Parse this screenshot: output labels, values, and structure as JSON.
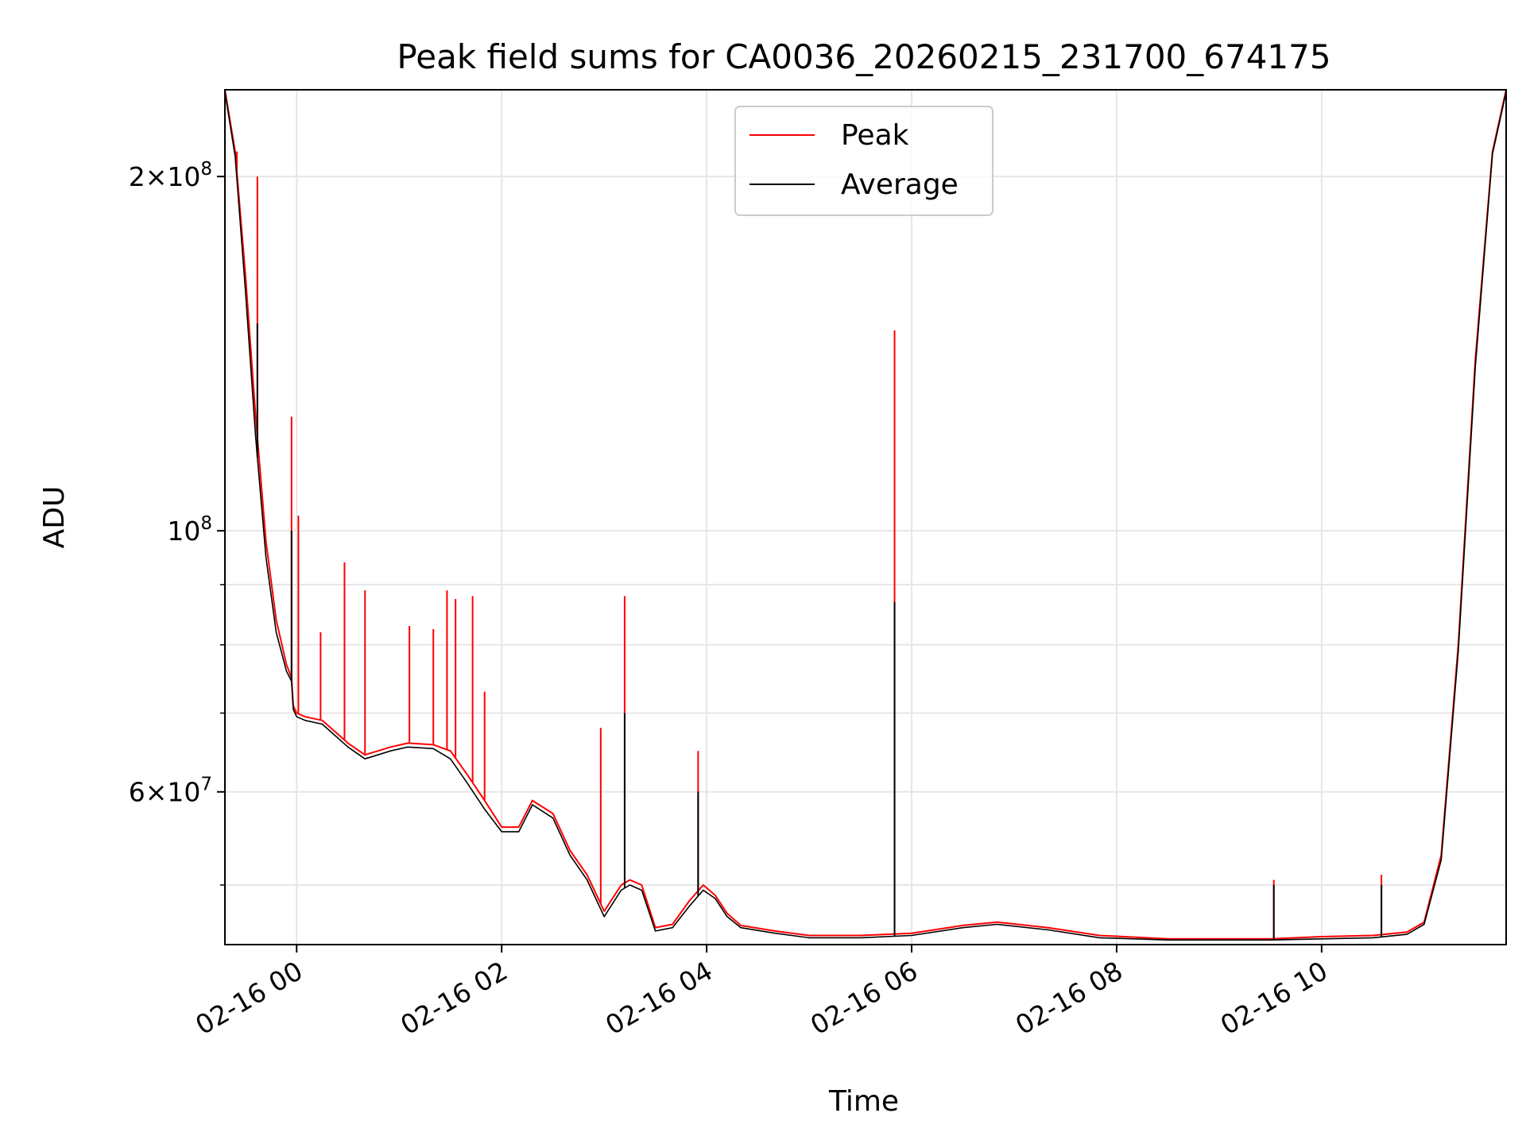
{
  "chart_data": {
    "type": "line",
    "title": "Peak field sums for CA0036_20260215_231700_674175",
    "xlabel": "Time",
    "ylabel": "ADU",
    "yscale": "log",
    "grid": true,
    "legend_position": "top-center",
    "xlim": [
      "2026-02-15 23:18",
      "2026-02-16 11:48"
    ],
    "ylim": [
      44500000,
      237000000
    ],
    "x_ticks": [
      "02-16 00",
      "02-16 02",
      "02-16 04",
      "02-16 06",
      "02-16 08",
      "02-16 10"
    ],
    "y_ticks": [
      {
        "value": 200000000,
        "mantissa": "2",
        "exponent": "8"
      },
      {
        "value": 100000000,
        "mantissa": "",
        "exponent": "8"
      },
      {
        "value": 60000000,
        "mantissa": "6",
        "exponent": "7"
      }
    ],
    "series": [
      {
        "name": "Peak",
        "color": "#ff0000",
        "x": [
          "2026-02-15 23:18",
          "2026-02-15 23:24",
          "2026-02-15 23:30",
          "2026-02-15 23:36",
          "2026-02-15 23:42",
          "2026-02-15 23:48",
          "2026-02-15 23:54",
          "2026-02-15 23:57",
          "2026-02-15 23:58",
          "2026-02-16 00:00",
          "2026-02-16 00:05",
          "2026-02-16 00:15",
          "2026-02-16 00:30",
          "2026-02-16 00:40",
          "2026-02-16 00:55",
          "2026-02-16 01:05",
          "2026-02-16 01:20",
          "2026-02-16 01:30",
          "2026-02-16 01:40",
          "2026-02-16 01:50",
          "2026-02-16 02:00",
          "2026-02-16 02:10",
          "2026-02-16 02:18",
          "2026-02-16 02:30",
          "2026-02-16 02:40",
          "2026-02-16 02:50",
          "2026-02-16 03:00",
          "2026-02-16 03:10",
          "2026-02-16 03:15",
          "2026-02-16 03:22",
          "2026-02-16 03:30",
          "2026-02-16 03:40",
          "2026-02-16 03:50",
          "2026-02-16 03:58",
          "2026-02-16 04:05",
          "2026-02-16 04:12",
          "2026-02-16 04:20",
          "2026-02-16 04:40",
          "2026-02-16 05:00",
          "2026-02-16 05:30",
          "2026-02-16 06:00",
          "2026-02-16 06:30",
          "2026-02-16 06:50",
          "2026-02-16 07:20",
          "2026-02-16 07:50",
          "2026-02-16 08:30",
          "2026-02-16 09:00",
          "2026-02-16 09:30",
          "2026-02-16 10:00",
          "2026-02-16 10:30",
          "2026-02-16 10:50",
          "2026-02-16 11:00",
          "2026-02-16 11:10",
          "2026-02-16 11:20",
          "2026-02-16 11:30",
          "2026-02-16 11:40",
          "2026-02-16 11:48"
        ],
        "values": [
          237000000,
          210000000,
          165000000,
          125000000,
          98000000,
          84000000,
          77000000,
          75000000,
          71000000,
          70000000,
          69500000,
          69000000,
          66000000,
          64500000,
          65500000,
          66000000,
          65800000,
          65000000,
          62000000,
          59000000,
          56000000,
          56000000,
          59000000,
          57500000,
          53500000,
          51000000,
          47500000,
          50000000,
          50500000,
          50000000,
          46000000,
          46300000,
          48500000,
          50000000,
          49000000,
          47300000,
          46200000,
          45700000,
          45300000,
          45300000,
          45500000,
          46200000,
          46500000,
          46000000,
          45300000,
          45000000,
          45000000,
          45000000,
          45200000,
          45300000,
          45600000,
          46500000,
          53000000,
          80000000,
          140000000,
          210000000,
          237000000
        ],
        "spikes": [
          {
            "x": "2026-02-15 23:25",
            "value": 210000000
          },
          {
            "x": "2026-02-15 23:37",
            "value": 200000000
          },
          {
            "x": "2026-02-15 23:57",
            "value": 125000000
          },
          {
            "x": "2026-02-16 00:01",
            "value": 103000000
          },
          {
            "x": "2026-02-16 00:14",
            "value": 82000000
          },
          {
            "x": "2026-02-16 00:28",
            "value": 94000000
          },
          {
            "x": "2026-02-16 00:40",
            "value": 89000000
          },
          {
            "x": "2026-02-16 01:06",
            "value": 83000000
          },
          {
            "x": "2026-02-16 01:20",
            "value": 82500000
          },
          {
            "x": "2026-02-16 01:28",
            "value": 89000000
          },
          {
            "x": "2026-02-16 01:33",
            "value": 87500000
          },
          {
            "x": "2026-02-16 01:43",
            "value": 88000000
          },
          {
            "x": "2026-02-16 01:50",
            "value": 73000000
          },
          {
            "x": "2026-02-16 02:58",
            "value": 68000000
          },
          {
            "x": "2026-02-16 03:12",
            "value": 88000000
          },
          {
            "x": "2026-02-16 03:55",
            "value": 65000000
          },
          {
            "x": "2026-02-16 05:50",
            "value": 148000000
          },
          {
            "x": "2026-02-16 09:32",
            "value": 50500000
          },
          {
            "x": "2026-02-16 10:35",
            "value": 51000000
          }
        ]
      },
      {
        "name": "Average",
        "color": "#000000",
        "x": [
          "2026-02-15 23:18",
          "2026-02-15 23:24",
          "2026-02-15 23:30",
          "2026-02-15 23:36",
          "2026-02-15 23:42",
          "2026-02-15 23:48",
          "2026-02-15 23:54",
          "2026-02-15 23:57",
          "2026-02-15 23:58",
          "2026-02-16 00:00",
          "2026-02-16 00:05",
          "2026-02-16 00:15",
          "2026-02-16 00:30",
          "2026-02-16 00:40",
          "2026-02-16 00:55",
          "2026-02-16 01:05",
          "2026-02-16 01:20",
          "2026-02-16 01:30",
          "2026-02-16 01:40",
          "2026-02-16 01:50",
          "2026-02-16 02:00",
          "2026-02-16 02:10",
          "2026-02-16 02:18",
          "2026-02-16 02:30",
          "2026-02-16 02:40",
          "2026-02-16 02:50",
          "2026-02-16 03:00",
          "2026-02-16 03:10",
          "2026-02-16 03:15",
          "2026-02-16 03:22",
          "2026-02-16 03:30",
          "2026-02-16 03:40",
          "2026-02-16 03:50",
          "2026-02-16 03:58",
          "2026-02-16 04:05",
          "2026-02-16 04:12",
          "2026-02-16 04:20",
          "2026-02-16 04:40",
          "2026-02-16 05:00",
          "2026-02-16 05:30",
          "2026-02-16 06:00",
          "2026-02-16 06:30",
          "2026-02-16 06:50",
          "2026-02-16 07:20",
          "2026-02-16 07:50",
          "2026-02-16 08:30",
          "2026-02-16 09:00",
          "2026-02-16 09:30",
          "2026-02-16 10:00",
          "2026-02-16 10:30",
          "2026-02-16 10:50",
          "2026-02-16 11:00",
          "2026-02-16 11:10",
          "2026-02-16 11:20",
          "2026-02-16 11:30",
          "2026-02-16 11:40",
          "2026-02-16 11:48"
        ],
        "values": [
          236000000,
          208000000,
          160000000,
          120000000,
          95000000,
          82000000,
          76000000,
          74500000,
          70500000,
          69500000,
          69000000,
          68500000,
          65500000,
          64000000,
          65000000,
          65500000,
          65300000,
          64000000,
          61000000,
          58000000,
          55500000,
          55500000,
          58500000,
          57000000,
          53000000,
          50500000,
          47000000,
          49500000,
          50000000,
          49500000,
          45700000,
          46000000,
          48000000,
          49500000,
          48700000,
          47000000,
          46000000,
          45500000,
          45100000,
          45100000,
          45300000,
          46000000,
          46300000,
          45800000,
          45100000,
          44900000,
          44900000,
          44900000,
          45000000,
          45100000,
          45400000,
          46300000,
          52500000,
          79000000,
          138000000,
          209000000,
          236000000
        ],
        "spikes": [
          {
            "x": "2026-02-15 23:37",
            "value": 150000000
          },
          {
            "x": "2026-02-15 23:57",
            "value": 100000000
          },
          {
            "x": "2026-02-16 03:12",
            "value": 70000000
          },
          {
            "x": "2026-02-16 03:55",
            "value": 60000000
          },
          {
            "x": "2026-02-16 05:50",
            "value": 87000000
          },
          {
            "x": "2026-02-16 09:32",
            "value": 50000000
          },
          {
            "x": "2026-02-16 10:35",
            "value": 50000000
          }
        ]
      }
    ]
  }
}
